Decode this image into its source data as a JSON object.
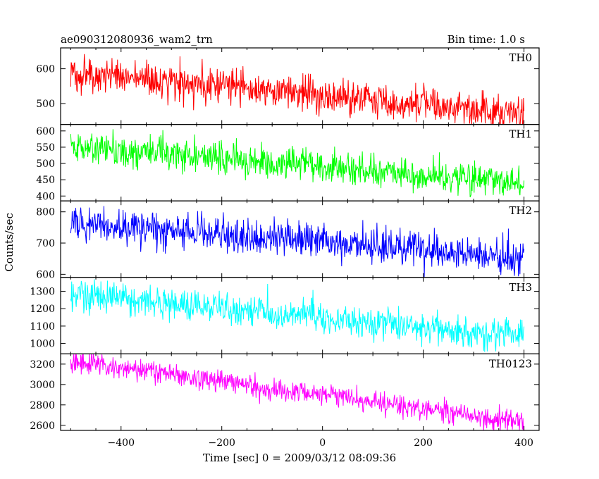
{
  "chart_data": {
    "type": "line",
    "title": "ae090312080936_wam2_trn",
    "subtitle": "Bin time: 1.0 s",
    "xlabel": "Time [sec] 0 = 2009/03/12 08:09:36",
    "ylabel": "Counts/sec",
    "xlim": [
      -520,
      430
    ],
    "x_ticks": [
      -400,
      -200,
      0,
      200,
      400
    ],
    "x_tick_labels": [
      "−400",
      "−200",
      "0",
      "200",
      "400"
    ],
    "x_start": -500,
    "x_end": 400,
    "bin_time": 1.0,
    "grid": false,
    "panels": [
      {
        "name": "TH0",
        "color": "#ff0000",
        "ylim": [
          440,
          660
        ],
        "y_ticks": [
          500,
          600
        ],
        "trend": {
          "start": 590,
          "end": 470
        },
        "noise_sd": 25
      },
      {
        "name": "TH1",
        "color": "#00ff00",
        "ylim": [
          385,
          620
        ],
        "y_ticks": [
          400,
          450,
          500,
          550,
          600
        ],
        "trend": {
          "start": 555,
          "end": 440
        },
        "noise_sd": 25
      },
      {
        "name": "TH2",
        "color": "#0000ff",
        "ylim": [
          590,
          835
        ],
        "y_ticks": [
          600,
          700,
          800
        ],
        "trend": {
          "start": 765,
          "end": 650
        },
        "noise_sd": 28
      },
      {
        "name": "TH3",
        "color": "#00ffff",
        "ylim": [
          940,
          1380
        ],
        "y_ticks": [
          1000,
          1100,
          1200,
          1300
        ],
        "trend": {
          "start": 1285,
          "end": 1040
        },
        "noise_sd": 45
      },
      {
        "name": "TH0123",
        "color": "#ff00ff",
        "ylim": [
          2550,
          3300
        ],
        "y_ticks": [
          2600,
          2800,
          3000,
          3200
        ],
        "trend": {
          "start": 3230,
          "end": 2620
        },
        "noise_sd": 55
      }
    ]
  }
}
